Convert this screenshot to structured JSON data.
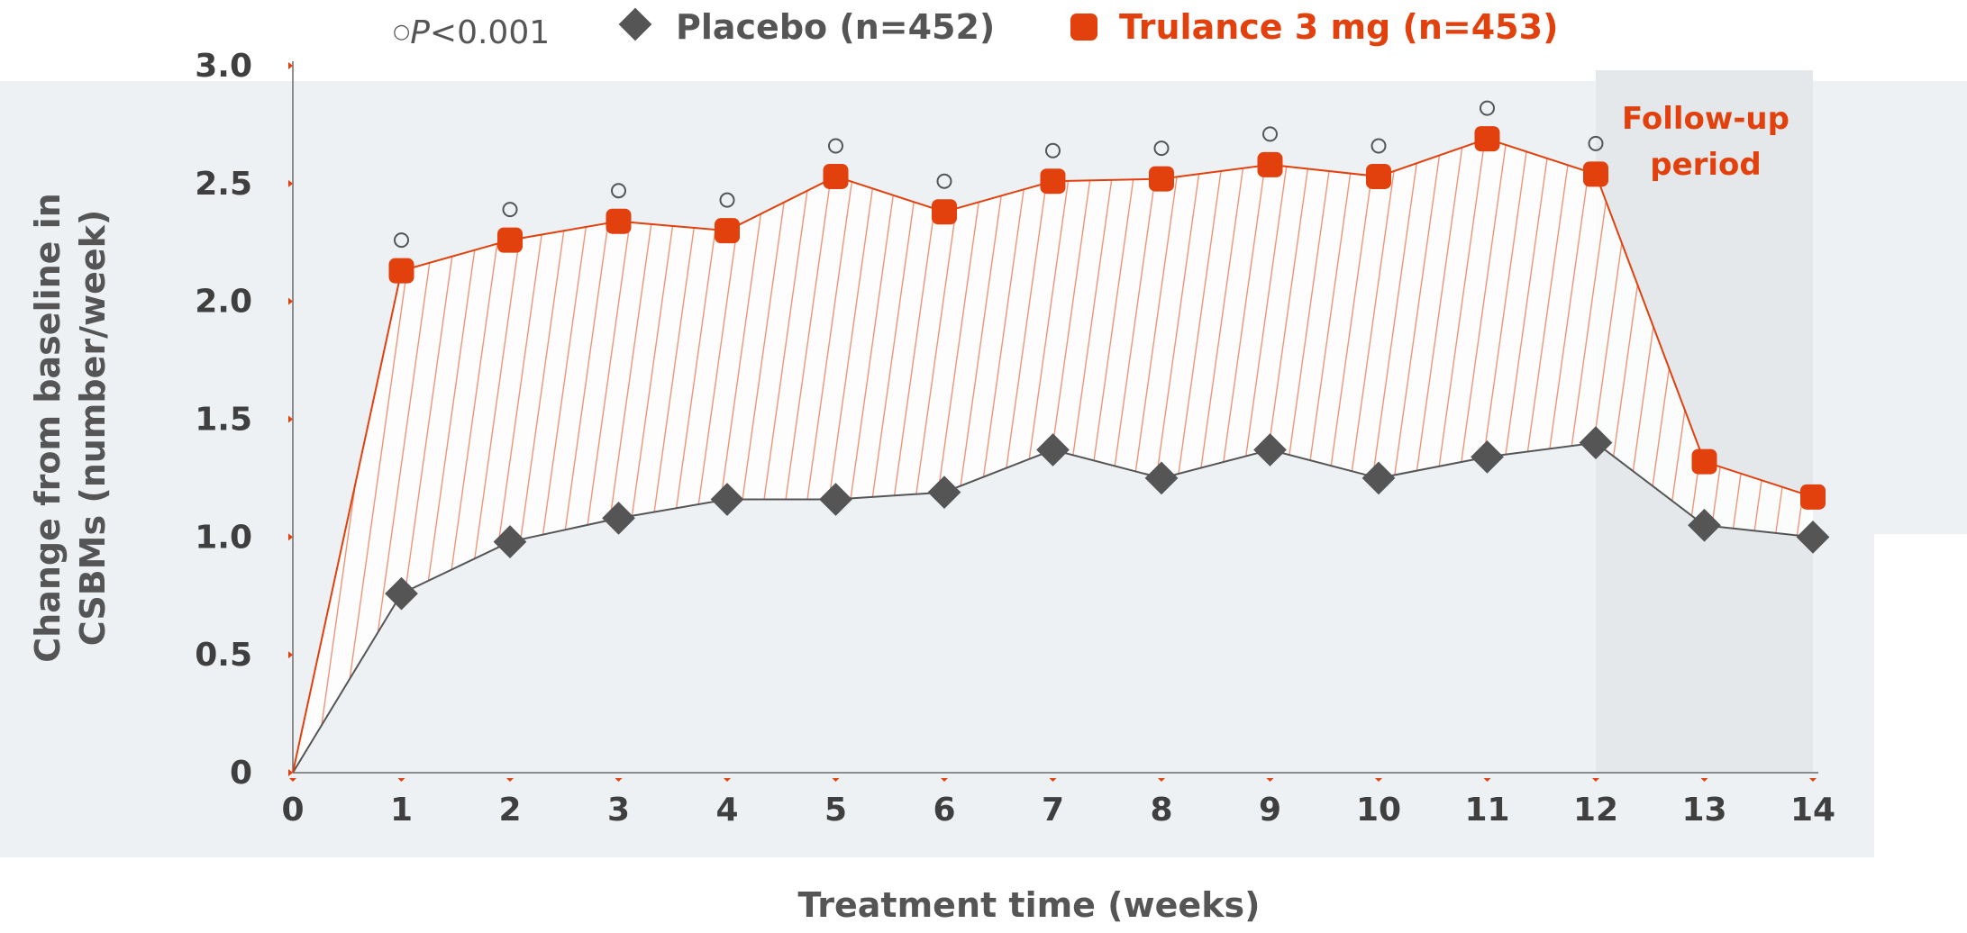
{
  "chart_data": {
    "type": "line",
    "xlabel": "Treatment time (weeks)",
    "ylabel_line1": "Change from baseline in",
    "ylabel_line2": "CSBMs (number/week)",
    "x": [
      0,
      1,
      2,
      3,
      4,
      5,
      6,
      7,
      8,
      9,
      10,
      11,
      12,
      13,
      14
    ],
    "x_tick_labels": [
      "0",
      "1",
      "2",
      "3",
      "4",
      "5",
      "6",
      "7",
      "8",
      "9",
      "10",
      "11",
      "12",
      "13",
      "14"
    ],
    "y_tick_values": [
      0,
      0.5,
      1.0,
      1.5,
      2.0,
      2.5,
      3.0
    ],
    "y_tick_labels": [
      "0",
      "0.5",
      "1.0",
      "1.5",
      "2.0",
      "2.5",
      "3.0"
    ],
    "xlim": [
      0,
      14
    ],
    "ylim": [
      0,
      3.0
    ],
    "grid": false,
    "legend_position": "top",
    "series": [
      {
        "name": "Placebo (n=452)",
        "marker": "diamond",
        "color": "#555555",
        "values": [
          0,
          0.76,
          0.98,
          1.08,
          1.16,
          1.16,
          1.19,
          1.37,
          1.25,
          1.37,
          1.25,
          1.34,
          1.4,
          1.05,
          1.0
        ]
      },
      {
        "name": "Trulance 3 mg (n=453)",
        "marker": "rounded-square",
        "color": "#e2400c",
        "values": [
          0,
          2.13,
          2.26,
          2.34,
          2.3,
          2.53,
          2.38,
          2.51,
          2.52,
          2.58,
          2.53,
          2.69,
          2.54,
          1.32,
          1.17
        ]
      }
    ],
    "significance": {
      "symbol": "○",
      "legend_symbol": "○",
      "legend_p": "P",
      "legend_rest": "<0.001",
      "weeks": [
        1,
        2,
        3,
        4,
        5,
        6,
        7,
        8,
        9,
        10,
        11,
        12
      ]
    },
    "followup": {
      "label_line1": "Follow-up",
      "label_line2": "period",
      "start_week": 12,
      "end_week": 14
    }
  },
  "colors": {
    "trulance": "#e2400c",
    "placebo": "#555555",
    "panel_background": "#edf1f4",
    "followup_shade": "#e4e8eb",
    "axis": "#6b6b6b"
  }
}
